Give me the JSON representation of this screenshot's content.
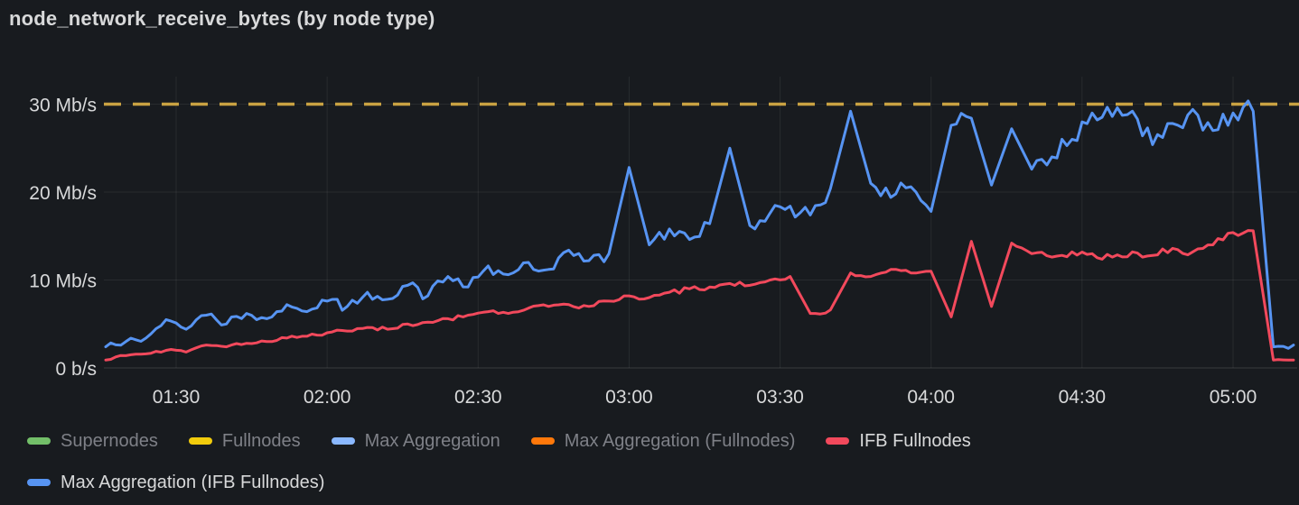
{
  "panel": {
    "title": "node_network_receive_bytes (by node type)"
  },
  "colors": {
    "background": "#181B1F",
    "text_primary": "#D8D9DA",
    "text_dimmed": "#7E8087",
    "grid": "rgba(255,255,255,0.07)",
    "axis_line": "rgba(255,255,255,0.14)",
    "threshold": "#C9A242",
    "blue": "#5794F2",
    "light_blue": "#8AB8FF",
    "red": "#F2495C",
    "green": "#73BF69",
    "yellow": "#F2CC0C",
    "orange": "#FF780A"
  },
  "chart_data": {
    "type": "line",
    "title": "node_network_receive_bytes (by node type)",
    "unit": "Mb/s",
    "yticks": [
      {
        "value": 0,
        "label": "0 b/s"
      },
      {
        "value": 10,
        "label": "10 Mb/s"
      },
      {
        "value": 20,
        "label": "20 Mb/s"
      },
      {
        "value": 30,
        "label": "30 Mb/s"
      }
    ],
    "ylim": [
      0,
      31.5
    ],
    "xticks": [
      "01:30",
      "02:00",
      "02:30",
      "03:00",
      "03:30",
      "04:00",
      "04:30",
      "05:00"
    ],
    "x_unit": "time (HH:MM), values below are minutes after 00:00",
    "x_range_minutes": [
      76,
      312
    ],
    "grid": true,
    "legend_position": "bottom",
    "threshold": {
      "value": 30,
      "label": "30 Mb/s",
      "style": "dashed",
      "color": "#C9A242"
    },
    "x_minutes": [
      76,
      80,
      84,
      88,
      92,
      96,
      100,
      104,
      108,
      112,
      116,
      120,
      124,
      128,
      132,
      136,
      140,
      144,
      148,
      152,
      156,
      160,
      164,
      168,
      172,
      176,
      180,
      184,
      188,
      192,
      196,
      200,
      204,
      208,
      212,
      216,
      220,
      224,
      228,
      232,
      236,
      240,
      244,
      248,
      252,
      256,
      260,
      264,
      268,
      272,
      276,
      280,
      284,
      288,
      292,
      296,
      300,
      304,
      308,
      312
    ],
    "series": [
      {
        "name": "Max Aggregation (IFB Fullnodes)",
        "color": "#5794F2",
        "values": [
          2.4,
          3.0,
          3.4,
          5.5,
          4.4,
          6.0,
          5.0,
          6.2,
          5.6,
          7.2,
          6.4,
          7.6,
          7.0,
          8.6,
          7.8,
          9.4,
          8.2,
          10.4,
          9.2,
          11.6,
          10.6,
          12.0,
          11.2,
          13.4,
          12.2,
          13.0,
          22.8,
          14.0,
          15.8,
          14.6,
          16.4,
          25.0,
          16.2,
          17.6,
          18.4,
          17.4,
          20.4,
          29.2,
          21.0,
          19.4,
          20.6,
          17.8,
          27.6,
          28.4,
          20.8,
          27.2,
          22.6,
          24.0,
          26.0,
          29.0,
          28.6,
          29.2,
          25.4,
          27.8,
          29.4,
          27.0,
          29.0,
          29.2,
          2.4,
          2.6
        ]
      },
      {
        "name": "IFB Fullnodes",
        "color": "#F2495C",
        "values": [
          0.9,
          1.4,
          1.6,
          2.0,
          1.8,
          2.6,
          2.4,
          2.8,
          3.0,
          3.4,
          3.6,
          4.0,
          4.2,
          4.6,
          4.4,
          5.0,
          5.2,
          5.6,
          6.0,
          6.4,
          6.2,
          6.8,
          7.0,
          7.2,
          7.0,
          7.6,
          8.2,
          8.0,
          8.6,
          9.0,
          9.2,
          9.6,
          9.4,
          10.0,
          10.4,
          6.2,
          6.6,
          10.8,
          10.4,
          11.2,
          10.8,
          11.0,
          5.8,
          14.4,
          7.0,
          14.2,
          13.0,
          12.6,
          13.2,
          13.0,
          12.6,
          13.2,
          12.8,
          13.6,
          13.2,
          14.0,
          15.4,
          15.6,
          0.9,
          0.9
        ]
      }
    ]
  },
  "legend": {
    "items": [
      {
        "label": "Supernodes",
        "color": "#73BF69",
        "dimmed": true
      },
      {
        "label": "Fullnodes",
        "color": "#F2CC0C",
        "dimmed": true
      },
      {
        "label": "Max Aggregation",
        "color": "#8AB8FF",
        "dimmed": true
      },
      {
        "label": "Max Aggregation (Fullnodes)",
        "color": "#FF780A",
        "dimmed": true
      },
      {
        "label": "IFB Fullnodes",
        "color": "#F2495C",
        "dimmed": false
      },
      {
        "label": "Max Aggregation (IFB Fullnodes)",
        "color": "#5794F2",
        "dimmed": false
      }
    ]
  }
}
